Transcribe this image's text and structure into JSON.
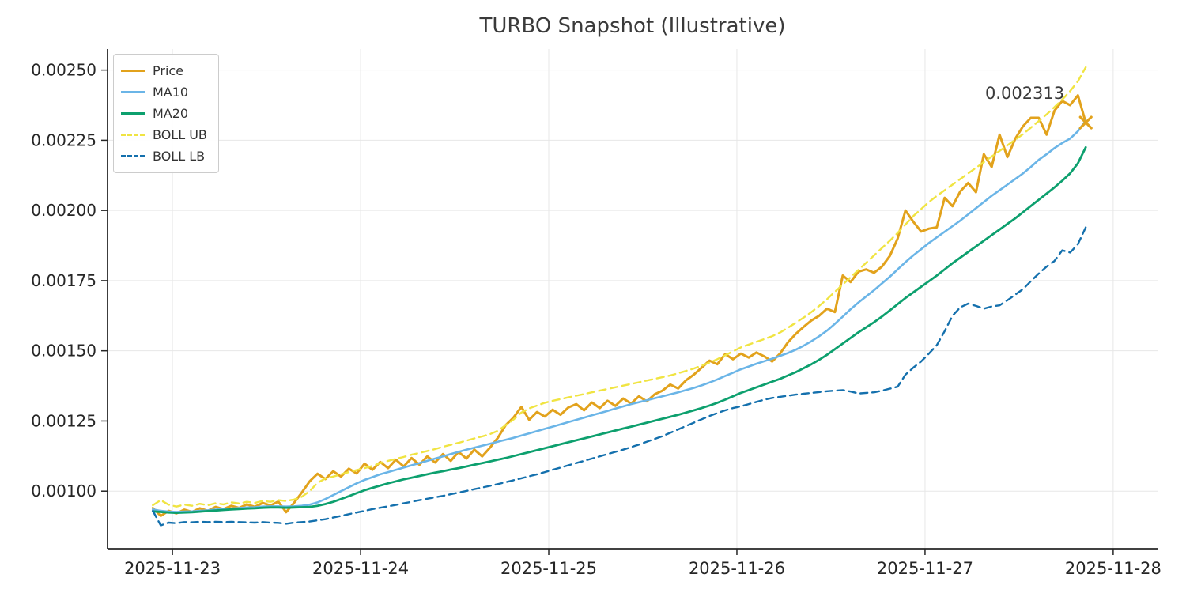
{
  "figure": {
    "title": "TURBO Snapshot (Illustrative)",
    "background": "#ffffff",
    "text_color": "#3a3a3a",
    "axis_color": "#262626",
    "grid_color": "#e7e7e7",
    "annotation": {
      "text": "0.002313",
      "x_day": 4.53,
      "y_value": 0.002398
    },
    "last_point_marker": "x-marker"
  },
  "chart_data": {
    "type": "line",
    "title": "TURBO Snapshot (Illustrative)",
    "xlabel": "",
    "ylabel": "",
    "grid": true,
    "legend_position": "upper-left",
    "x_axis": {
      "tick_days": [
        0,
        1,
        2,
        3,
        4,
        5
      ],
      "tick_labels": [
        "2025-11-23",
        "2025-11-24",
        "2025-11-25",
        "2025-11-26",
        "2025-11-27",
        "2025-11-28"
      ],
      "xlim_days": [
        -0.345,
        5.24
      ],
      "first_point_day": -0.104,
      "sample_interval_days": 0.0416667
    },
    "y_axis": {
      "ticks": [
        0.001,
        0.00125,
        0.0015,
        0.00175,
        0.002,
        0.00225,
        0.0025
      ],
      "tick_labels": [
        "0.00100",
        "0.00125",
        "0.00150",
        "0.00175",
        "0.00200",
        "0.00225",
        "0.00250"
      ],
      "ylim": [
        0.000795,
        0.002575
      ]
    },
    "last_price_label": "0.002313",
    "series": [
      {
        "name": "Price",
        "color": "#E2A21C",
        "style": "solid",
        "width": 3,
        "values": [
          0.00094,
          0.000912,
          0.00093,
          0.000921,
          0.000934,
          0.000926,
          0.000939,
          0.00093,
          0.000944,
          0.000936,
          0.000948,
          0.00094,
          0.000953,
          0.000944,
          0.000958,
          0.000949,
          0.000963,
          0.000925,
          0.000958,
          0.000995,
          0.001035,
          0.001062,
          0.001043,
          0.001071,
          0.001052,
          0.00108,
          0.001063,
          0.001098,
          0.001076,
          0.001104,
          0.001082,
          0.001112,
          0.001088,
          0.001118,
          0.001094,
          0.001124,
          0.001102,
          0.001132,
          0.001108,
          0.00114,
          0.001116,
          0.001148,
          0.001124,
          0.001155,
          0.00119,
          0.001235,
          0.001262,
          0.0013,
          0.001254,
          0.001282,
          0.001266,
          0.00129,
          0.001272,
          0.001298,
          0.00131,
          0.001288,
          0.001316,
          0.001296,
          0.001322,
          0.001304,
          0.00133,
          0.001312,
          0.001338,
          0.00132,
          0.001345,
          0.001358,
          0.00138,
          0.001366,
          0.001395,
          0.001415,
          0.00144,
          0.001465,
          0.001452,
          0.001488,
          0.00147,
          0.00149,
          0.001476,
          0.001494,
          0.00148,
          0.001462,
          0.00149,
          0.00153,
          0.00156,
          0.001585,
          0.001608,
          0.001625,
          0.00165,
          0.001638,
          0.001768,
          0.001745,
          0.001782,
          0.00179,
          0.001778,
          0.0018,
          0.001838,
          0.0019,
          0.002,
          0.00196,
          0.001925,
          0.001935,
          0.00194,
          0.002045,
          0.002015,
          0.002068,
          0.002098,
          0.002065,
          0.0022,
          0.002155,
          0.00227,
          0.00219,
          0.002255,
          0.0023,
          0.00233,
          0.00233,
          0.00227,
          0.002355,
          0.00239,
          0.002375,
          0.00241,
          0.002313
        ]
      },
      {
        "name": "MA10",
        "color": "#6BB5E7",
        "style": "solid",
        "width": 2.6,
        "values": [
          0.000935,
          0.00093,
          0.000927,
          0.000926,
          0.000927,
          0.000928,
          0.00093,
          0.000932,
          0.000934,
          0.000936,
          0.000938,
          0.00094,
          0.000942,
          0.000943,
          0.000945,
          0.000946,
          0.000946,
          0.000945,
          0.000946,
          0.000948,
          0.000952,
          0.00096,
          0.000972,
          0.000986,
          0.001,
          0.001014,
          0.001028,
          0.00104,
          0.00105,
          0.00106,
          0.001068,
          0.001076,
          0.001084,
          0.001092,
          0.0011,
          0.001108,
          0.001116,
          0.001124,
          0.001132,
          0.00114,
          0.001148,
          0.001155,
          0.001162,
          0.001169,
          0.001176,
          0.001183,
          0.00119,
          0.001198,
          0.001206,
          0.001214,
          0.001222,
          0.00123,
          0.001238,
          0.001246,
          0.001254,
          0.001262,
          0.00127,
          0.001278,
          0.001286,
          0.001294,
          0.001302,
          0.00131,
          0.001317,
          0.001324,
          0.001331,
          0.001338,
          0.001345,
          0.001352,
          0.00136,
          0.001368,
          0.001377,
          0.001387,
          0.001398,
          0.00141,
          0.001422,
          0.001434,
          0.001444,
          0.001454,
          0.001463,
          0.001472,
          0.001482,
          0.001492,
          0.001504,
          0.001518,
          0.001534,
          0.001552,
          0.001572,
          0.001596,
          0.001622,
          0.001648,
          0.001672,
          0.001694,
          0.001716,
          0.00174,
          0.001764,
          0.00179,
          0.001816,
          0.00184,
          0.001862,
          0.001884,
          0.001904,
          0.001924,
          0.001944,
          0.001964,
          0.001986,
          0.002008,
          0.00203,
          0.002052,
          0.002072,
          0.002092,
          0.002112,
          0.002132,
          0.002155,
          0.00218,
          0.0022,
          0.002222,
          0.00224,
          0.002256,
          0.002282,
          0.00232
        ]
      },
      {
        "name": "MA20",
        "color": "#0DA06E",
        "style": "solid",
        "width": 2.8,
        "values": [
          0.000928,
          0.000926,
          0.000924,
          0.000923,
          0.000924,
          0.000925,
          0.000927,
          0.000929,
          0.000931,
          0.000933,
          0.000935,
          0.000936,
          0.000938,
          0.000939,
          0.000941,
          0.000942,
          0.000942,
          0.000941,
          0.000942,
          0.000943,
          0.000944,
          0.000948,
          0.000954,
          0.000962,
          0.000972,
          0.000982,
          0.000993,
          0.001003,
          0.001012,
          0.00102,
          0.001028,
          0.001035,
          0.001042,
          0.001048,
          0.001054,
          0.00106,
          0.001066,
          0.001071,
          0.001077,
          0.001082,
          0.001088,
          0.001094,
          0.0011,
          0.001106,
          0.001112,
          0.001118,
          0.001125,
          0.001132,
          0.001139,
          0.001146,
          0.001153,
          0.00116,
          0.001167,
          0.001174,
          0.001181,
          0.001188,
          0.001195,
          0.001202,
          0.001209,
          0.001216,
          0.001223,
          0.00123,
          0.001237,
          0.001244,
          0.001251,
          0.001258,
          0.001265,
          0.001272,
          0.00128,
          0.001288,
          0.001296,
          0.001305,
          0.001315,
          0.001326,
          0.001338,
          0.00135,
          0.00136,
          0.00137,
          0.00138,
          0.00139,
          0.0014,
          0.001412,
          0.001424,
          0.001438,
          0.001452,
          0.001468,
          0.001486,
          0.001506,
          0.001526,
          0.001546,
          0.001566,
          0.001584,
          0.001602,
          0.001622,
          0.001644,
          0.001666,
          0.001688,
          0.001708,
          0.001728,
          0.001748,
          0.001768,
          0.00179,
          0.001812,
          0.001832,
          0.001852,
          0.001872,
          0.001892,
          0.001912,
          0.001932,
          0.001952,
          0.001972,
          0.001994,
          0.002016,
          0.002038,
          0.00206,
          0.002082,
          0.002106,
          0.002132,
          0.002168,
          0.002225
        ]
      },
      {
        "name": "BOLL UB",
        "color": "#F0E442",
        "style": "dashed",
        "width": 2.4,
        "values": [
          0.00095,
          0.000968,
          0.000952,
          0.000945,
          0.000952,
          0.000948,
          0.000955,
          0.00095,
          0.000957,
          0.000953,
          0.00096,
          0.000956,
          0.000962,
          0.000958,
          0.000965,
          0.000962,
          0.000968,
          0.000965,
          0.00097,
          0.00098,
          0.001,
          0.00103,
          0.001045,
          0.001052,
          0.00106,
          0.001068,
          0.001075,
          0.001082,
          0.00109,
          0.0011,
          0.001108,
          0.001115,
          0.001122,
          0.00113,
          0.001136,
          0.001143,
          0.00115,
          0.001158,
          0.001165,
          0.001172,
          0.00118,
          0.001188,
          0.001195,
          0.001203,
          0.001215,
          0.001235,
          0.001255,
          0.00128,
          0.001295,
          0.001305,
          0.001315,
          0.001322,
          0.001328,
          0.001334,
          0.00134,
          0.001346,
          0.001352,
          0.001358,
          0.001364,
          0.00137,
          0.001376,
          0.001382,
          0.001388,
          0.001394,
          0.0014,
          0.001406,
          0.001412,
          0.00142,
          0.001428,
          0.001437,
          0.001447,
          0.001458,
          0.00147,
          0.001484,
          0.001498,
          0.001512,
          0.001522,
          0.001532,
          0.001542,
          0.001552,
          0.001565,
          0.001582,
          0.0016,
          0.001618,
          0.001638,
          0.00166,
          0.001684,
          0.00171,
          0.001736,
          0.001762,
          0.001788,
          0.001814,
          0.00184,
          0.001866,
          0.001892,
          0.00192,
          0.00195,
          0.00198,
          0.002005,
          0.00203,
          0.002052,
          0.002072,
          0.002092,
          0.002112,
          0.002132,
          0.002152,
          0.002172,
          0.002192,
          0.002212,
          0.002232,
          0.002252,
          0.002272,
          0.002295,
          0.002318,
          0.002342,
          0.002368,
          0.002395,
          0.002425,
          0.00246,
          0.00251
        ]
      },
      {
        "name": "BOLL LB",
        "color": "#1470AD",
        "style": "dashed",
        "width": 2.4,
        "values": [
          0.00093,
          0.000878,
          0.000888,
          0.000886,
          0.00089,
          0.000889,
          0.000891,
          0.00089,
          0.000891,
          0.00089,
          0.000891,
          0.00089,
          0.000889,
          0.000888,
          0.00089,
          0.000888,
          0.000887,
          0.000884,
          0.000888,
          0.00089,
          0.000892,
          0.000896,
          0.0009,
          0.000906,
          0.000912,
          0.000918,
          0.000924,
          0.00093,
          0.000936,
          0.000941,
          0.000946,
          0.000951,
          0.000957,
          0.000962,
          0.000968,
          0.000973,
          0.000978,
          0.000983,
          0.000989,
          0.000995,
          0.001001,
          0.001007,
          0.001013,
          0.001019,
          0.001025,
          0.001032,
          0.001039,
          0.001046,
          0.001053,
          0.00106,
          0.001068,
          0.001076,
          0.001084,
          0.001092,
          0.0011,
          0.001108,
          0.001116,
          0.001124,
          0.001132,
          0.00114,
          0.001148,
          0.001157,
          0.001166,
          0.001176,
          0.001186,
          0.001196,
          0.001208,
          0.00122,
          0.001232,
          0.001244,
          0.001256,
          0.001268,
          0.001278,
          0.001288,
          0.001296,
          0.001302,
          0.00131,
          0.001318,
          0.001326,
          0.001332,
          0.001336,
          0.00134,
          0.001344,
          0.001347,
          0.00135,
          0.001353,
          0.001356,
          0.001358,
          0.00136,
          0.001355,
          0.001348,
          0.00135,
          0.001352,
          0.001358,
          0.001365,
          0.001372,
          0.001415,
          0.00144,
          0.001462,
          0.00149,
          0.00152,
          0.00157,
          0.001625,
          0.001655,
          0.001668,
          0.00166,
          0.00165,
          0.001658,
          0.001662,
          0.00168,
          0.0017,
          0.00172,
          0.001748,
          0.001775,
          0.0018,
          0.00182,
          0.001858,
          0.00185,
          0.00188,
          0.00194
        ]
      }
    ]
  }
}
